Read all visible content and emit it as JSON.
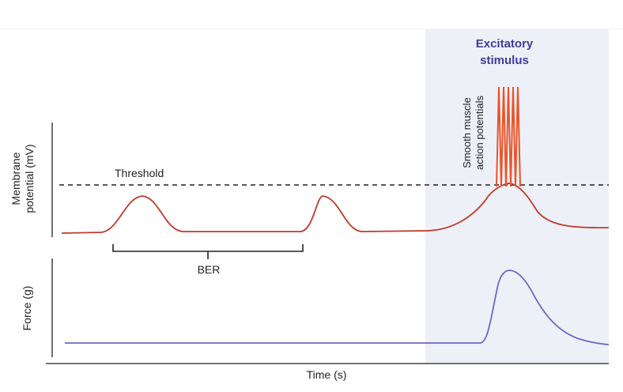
{
  "colors": {
    "stimulus_background": "#eef0f8",
    "membrane_trace": "#c0392b",
    "action_potentials": "#e8542a",
    "force_trace": "#6a6ac4",
    "threshold_line": "#222222",
    "stimulus_text": "#3d3d9a"
  },
  "labels": {
    "stimulus_line1": "Excitatory",
    "stimulus_line2": "stimulus",
    "membrane_axis_line1": "Membrane",
    "membrane_axis_line2": "potential (mV)",
    "force_axis": "Force (g)",
    "time_axis": "Time (s)",
    "threshold": "Threshold",
    "ber": "BER",
    "ap_line1": "Smooth muscle",
    "ap_line2": "action potentials"
  },
  "diagram": {
    "type": "smooth muscle slow-wave diagram",
    "basal_waves_below_threshold": 2,
    "action_potential_spikes": 5,
    "force_response_during_stimulus": true
  }
}
